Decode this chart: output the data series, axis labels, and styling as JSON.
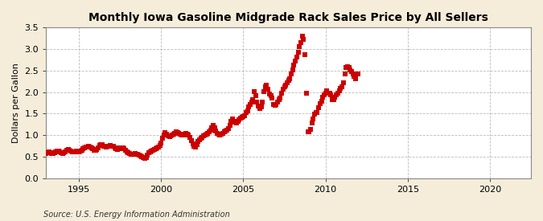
{
  "title": "Monthly Iowa Gasoline Midgrade Rack Sales Price by All Sellers",
  "ylabel": "Dollars per Gallon",
  "source": "Source: U.S. Energy Information Administration",
  "background_color": "#F5EDDA",
  "plot_bg_color": "#FFFFFF",
  "marker_color": "#CC0000",
  "marker": "s",
  "marker_size": 4,
  "xlim": [
    1993.0,
    2022.5
  ],
  "ylim": [
    0.0,
    3.5
  ],
  "xticks": [
    1995,
    2000,
    2005,
    2010,
    2015,
    2020
  ],
  "yticks": [
    0.0,
    0.5,
    1.0,
    1.5,
    2.0,
    2.5,
    3.0,
    3.5
  ],
  "data": [
    [
      1993.0,
      0.58
    ],
    [
      1993.08,
      0.6
    ],
    [
      1993.17,
      0.62
    ],
    [
      1993.25,
      0.6
    ],
    [
      1993.33,
      0.57
    ],
    [
      1993.42,
      0.58
    ],
    [
      1993.5,
      0.6
    ],
    [
      1993.58,
      0.62
    ],
    [
      1993.67,
      0.63
    ],
    [
      1993.75,
      0.63
    ],
    [
      1993.83,
      0.61
    ],
    [
      1993.92,
      0.59
    ],
    [
      1994.0,
      0.57
    ],
    [
      1994.08,
      0.59
    ],
    [
      1994.17,
      0.62
    ],
    [
      1994.25,
      0.65
    ],
    [
      1994.33,
      0.66
    ],
    [
      1994.42,
      0.65
    ],
    [
      1994.5,
      0.63
    ],
    [
      1994.58,
      0.62
    ],
    [
      1994.67,
      0.61
    ],
    [
      1994.75,
      0.62
    ],
    [
      1994.83,
      0.63
    ],
    [
      1994.92,
      0.62
    ],
    [
      1995.0,
      0.61
    ],
    [
      1995.08,
      0.63
    ],
    [
      1995.17,
      0.65
    ],
    [
      1995.25,
      0.68
    ],
    [
      1995.33,
      0.7
    ],
    [
      1995.42,
      0.72
    ],
    [
      1995.5,
      0.73
    ],
    [
      1995.58,
      0.74
    ],
    [
      1995.67,
      0.72
    ],
    [
      1995.75,
      0.7
    ],
    [
      1995.83,
      0.68
    ],
    [
      1995.92,
      0.65
    ],
    [
      1996.0,
      0.64
    ],
    [
      1996.08,
      0.66
    ],
    [
      1996.17,
      0.71
    ],
    [
      1996.25,
      0.76
    ],
    [
      1996.33,
      0.78
    ],
    [
      1996.42,
      0.77
    ],
    [
      1996.5,
      0.75
    ],
    [
      1996.58,
      0.74
    ],
    [
      1996.67,
      0.72
    ],
    [
      1996.75,
      0.74
    ],
    [
      1996.83,
      0.75
    ],
    [
      1996.92,
      0.76
    ],
    [
      1997.0,
      0.75
    ],
    [
      1997.08,
      0.74
    ],
    [
      1997.17,
      0.71
    ],
    [
      1997.25,
      0.68
    ],
    [
      1997.33,
      0.67
    ],
    [
      1997.42,
      0.69
    ],
    [
      1997.5,
      0.7
    ],
    [
      1997.58,
      0.71
    ],
    [
      1997.67,
      0.7
    ],
    [
      1997.75,
      0.68
    ],
    [
      1997.83,
      0.65
    ],
    [
      1997.92,
      0.62
    ],
    [
      1998.0,
      0.6
    ],
    [
      1998.08,
      0.58
    ],
    [
      1998.17,
      0.56
    ],
    [
      1998.25,
      0.55
    ],
    [
      1998.33,
      0.56
    ],
    [
      1998.42,
      0.57
    ],
    [
      1998.5,
      0.56
    ],
    [
      1998.58,
      0.55
    ],
    [
      1998.67,
      0.54
    ],
    [
      1998.75,
      0.52
    ],
    [
      1998.83,
      0.5
    ],
    [
      1998.92,
      0.48
    ],
    [
      1999.0,
      0.46
    ],
    [
      1999.08,
      0.48
    ],
    [
      1999.17,
      0.53
    ],
    [
      1999.25,
      0.59
    ],
    [
      1999.33,
      0.61
    ],
    [
      1999.42,
      0.63
    ],
    [
      1999.5,
      0.65
    ],
    [
      1999.58,
      0.67
    ],
    [
      1999.67,
      0.68
    ],
    [
      1999.75,
      0.7
    ],
    [
      1999.83,
      0.73
    ],
    [
      1999.92,
      0.76
    ],
    [
      2000.0,
      0.82
    ],
    [
      2000.08,
      0.92
    ],
    [
      2000.17,
      1.01
    ],
    [
      2000.25,
      1.06
    ],
    [
      2000.33,
      1.03
    ],
    [
      2000.42,
      0.98
    ],
    [
      2000.5,
      0.97
    ],
    [
      2000.58,
      0.99
    ],
    [
      2000.67,
      1.01
    ],
    [
      2000.75,
      1.03
    ],
    [
      2000.83,
      1.05
    ],
    [
      2000.92,
      1.07
    ],
    [
      2001.0,
      1.06
    ],
    [
      2001.08,
      1.05
    ],
    [
      2001.17,
      1.02
    ],
    [
      2001.25,
      1.0
    ],
    [
      2001.33,
      1.01
    ],
    [
      2001.42,
      1.03
    ],
    [
      2001.5,
      1.05
    ],
    [
      2001.58,
      1.03
    ],
    [
      2001.67,
      1.01
    ],
    [
      2001.75,
      0.94
    ],
    [
      2001.83,
      0.87
    ],
    [
      2001.92,
      0.79
    ],
    [
      2002.0,
      0.74
    ],
    [
      2002.08,
      0.72
    ],
    [
      2002.17,
      0.78
    ],
    [
      2002.25,
      0.85
    ],
    [
      2002.33,
      0.9
    ],
    [
      2002.42,
      0.93
    ],
    [
      2002.5,
      0.95
    ],
    [
      2002.58,
      0.98
    ],
    [
      2002.67,
      1.0
    ],
    [
      2002.75,
      1.03
    ],
    [
      2002.83,
      1.05
    ],
    [
      2002.92,
      1.08
    ],
    [
      2003.0,
      1.12
    ],
    [
      2003.08,
      1.17
    ],
    [
      2003.17,
      1.22
    ],
    [
      2003.25,
      1.18
    ],
    [
      2003.33,
      1.1
    ],
    [
      2003.42,
      1.05
    ],
    [
      2003.5,
      1.02
    ],
    [
      2003.58,
      1.0
    ],
    [
      2003.67,
      1.02
    ],
    [
      2003.75,
      1.05
    ],
    [
      2003.83,
      1.08
    ],
    [
      2003.92,
      1.1
    ],
    [
      2004.0,
      1.12
    ],
    [
      2004.08,
      1.15
    ],
    [
      2004.17,
      1.22
    ],
    [
      2004.25,
      1.32
    ],
    [
      2004.33,
      1.37
    ],
    [
      2004.42,
      1.33
    ],
    [
      2004.5,
      1.3
    ],
    [
      2004.58,
      1.28
    ],
    [
      2004.67,
      1.33
    ],
    [
      2004.75,
      1.36
    ],
    [
      2004.83,
      1.39
    ],
    [
      2004.92,
      1.41
    ],
    [
      2005.0,
      1.43
    ],
    [
      2005.08,
      1.46
    ],
    [
      2005.17,
      1.52
    ],
    [
      2005.25,
      1.56
    ],
    [
      2005.33,
      1.65
    ],
    [
      2005.42,
      1.71
    ],
    [
      2005.5,
      1.76
    ],
    [
      2005.58,
      1.82
    ],
    [
      2005.67,
      2.02
    ],
    [
      2005.75,
      1.92
    ],
    [
      2005.83,
      1.76
    ],
    [
      2005.92,
      1.67
    ],
    [
      2006.0,
      1.62
    ],
    [
      2006.08,
      1.66
    ],
    [
      2006.17,
      1.77
    ],
    [
      2006.25,
      2.02
    ],
    [
      2006.33,
      2.12
    ],
    [
      2006.42,
      2.17
    ],
    [
      2006.5,
      2.06
    ],
    [
      2006.58,
      1.96
    ],
    [
      2006.67,
      1.91
    ],
    [
      2006.75,
      1.86
    ],
    [
      2006.83,
      1.72
    ],
    [
      2006.92,
      1.7
    ],
    [
      2007.0,
      1.72
    ],
    [
      2007.08,
      1.77
    ],
    [
      2007.17,
      1.82
    ],
    [
      2007.25,
      1.87
    ],
    [
      2007.33,
      1.97
    ],
    [
      2007.42,
      2.07
    ],
    [
      2007.5,
      2.12
    ],
    [
      2007.58,
      2.17
    ],
    [
      2007.67,
      2.22
    ],
    [
      2007.75,
      2.27
    ],
    [
      2007.83,
      2.32
    ],
    [
      2007.92,
      2.42
    ],
    [
      2008.0,
      2.52
    ],
    [
      2008.08,
      2.62
    ],
    [
      2008.17,
      2.72
    ],
    [
      2008.25,
      2.82
    ],
    [
      2008.33,
      2.92
    ],
    [
      2008.42,
      3.05
    ],
    [
      2008.5,
      3.15
    ],
    [
      2008.58,
      3.3
    ],
    [
      2008.67,
      3.22
    ],
    [
      2008.75,
      2.88
    ],
    [
      2008.83,
      1.98
    ],
    [
      2008.92,
      1.08
    ],
    [
      2009.0,
      1.08
    ],
    [
      2009.08,
      1.13
    ],
    [
      2009.17,
      1.28
    ],
    [
      2009.25,
      1.38
    ],
    [
      2009.33,
      1.48
    ],
    [
      2009.42,
      1.53
    ],
    [
      2009.5,
      1.53
    ],
    [
      2009.58,
      1.63
    ],
    [
      2009.67,
      1.73
    ],
    [
      2009.75,
      1.78
    ],
    [
      2009.83,
      1.88
    ],
    [
      2009.92,
      1.93
    ],
    [
      2010.0,
      1.98
    ],
    [
      2010.08,
      2.03
    ],
    [
      2010.17,
      1.98
    ],
    [
      2010.25,
      1.98
    ],
    [
      2010.33,
      1.93
    ],
    [
      2010.42,
      1.83
    ],
    [
      2010.5,
      1.83
    ],
    [
      2010.58,
      1.88
    ],
    [
      2010.67,
      1.93
    ],
    [
      2010.75,
      1.98
    ],
    [
      2010.83,
      2.03
    ],
    [
      2010.92,
      2.08
    ],
    [
      2011.0,
      2.13
    ],
    [
      2011.08,
      2.22
    ],
    [
      2011.17,
      2.42
    ],
    [
      2011.25,
      2.57
    ],
    [
      2011.33,
      2.6
    ],
    [
      2011.42,
      2.57
    ],
    [
      2011.5,
      2.52
    ],
    [
      2011.58,
      2.47
    ],
    [
      2011.67,
      2.42
    ],
    [
      2011.75,
      2.37
    ],
    [
      2011.83,
      2.32
    ],
    [
      2012.0,
      2.42
    ]
  ]
}
